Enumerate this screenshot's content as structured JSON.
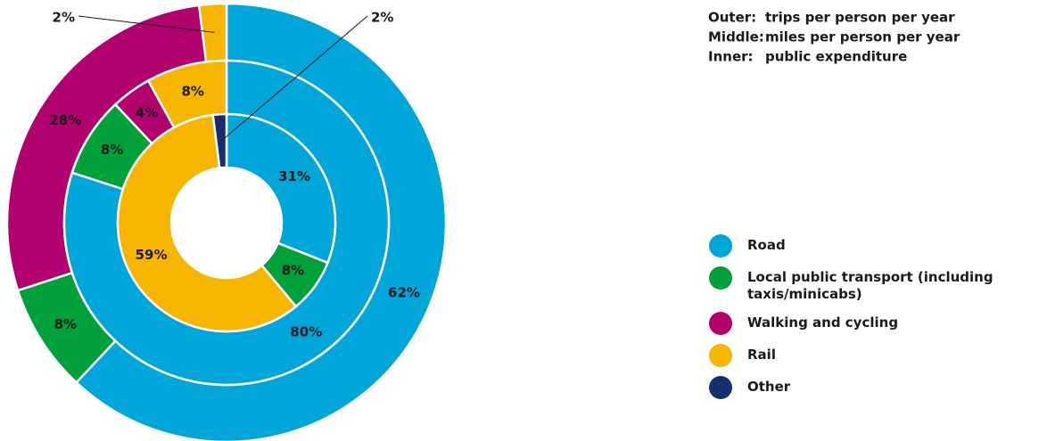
{
  "chart_data": {
    "type": "nested-donut",
    "categories": [
      "Road",
      "Local public transport (including taxis/minicabs)",
      "Walking and cycling",
      "Rail",
      "Other"
    ],
    "colors": [
      "#00a6da",
      "#00a03b",
      "#b2006e",
      "#f7b500",
      "#162e6b"
    ],
    "series": [
      {
        "name": "Outer:",
        "description": "trips per person per year",
        "values": [
          62,
          8,
          28,
          2,
          null
        ],
        "value_labels": [
          "62%",
          "8%",
          "28%",
          "2%",
          null
        ]
      },
      {
        "name": "Middle:",
        "description": "miles per person per year",
        "values": [
          80,
          8,
          4,
          8,
          null
        ],
        "value_labels": [
          "80%",
          "8%",
          "4%",
          "8%",
          null
        ]
      },
      {
        "name": "Inner:",
        "description": "public expenditure",
        "values": [
          31,
          8,
          null,
          59,
          2
        ],
        "value_labels": [
          "31%",
          "8%",
          null,
          "59%",
          "2%"
        ]
      }
    ]
  }
}
